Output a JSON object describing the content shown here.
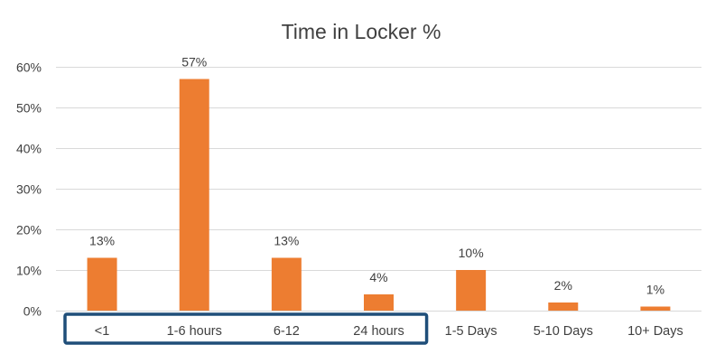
{
  "chart_data": {
    "type": "bar",
    "title": "Time in Locker %",
    "categories": [
      "<1",
      "1-6 hours",
      "6-12",
      "24 hours",
      "1-5 Days",
      "5-10 Days",
      "10+ Days"
    ],
    "values": [
      13,
      57,
      13,
      4,
      10,
      2,
      1
    ],
    "data_labels": [
      "13%",
      "57%",
      "13%",
      "4%",
      "10%",
      "2%",
      "1%"
    ],
    "ylim": [
      0,
      60
    ],
    "yticks": [
      0,
      10,
      20,
      30,
      40,
      50,
      60
    ],
    "ytick_labels": [
      "0%",
      "10%",
      "20%",
      "30%",
      "40%",
      "50%",
      "60%"
    ],
    "xlabel": "",
    "ylabel": "",
    "grid": true,
    "legend": "none",
    "highlighted_categories": [
      "<1",
      "1-6 hours",
      "6-12",
      "24 hours"
    ]
  },
  "colors": {
    "bar": "#ED7D31",
    "highlight_box": "#1F4E79",
    "grid": "#D9D9D9",
    "text": "#404040"
  }
}
